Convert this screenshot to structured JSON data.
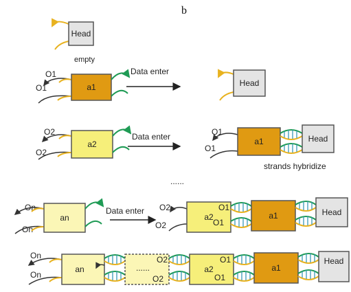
{
  "panel_label": "b",
  "colors": {
    "head_fill": "#e4e4e4",
    "a1_fill": "#e09a12",
    "a2_fill": "#f6ef7a",
    "an_fill": "#fbf6b6",
    "yellow_strand": "#e8b21f",
    "green_strand": "#1f9b55",
    "dark_strand": "#333333",
    "rung": "#2a8fb0"
  },
  "labels": {
    "head": "Head",
    "empty": "empty",
    "o1": "O1",
    "o2": "O2",
    "on": "On",
    "a1": "a1",
    "a2": "a2",
    "an": "an",
    "data_enter": "Data enter",
    "data_enter_short": "Data enter",
    "strands_hybridize": "strands hybridize",
    "ellipsis_mid": "......",
    "ellipsis_chain": "......"
  }
}
